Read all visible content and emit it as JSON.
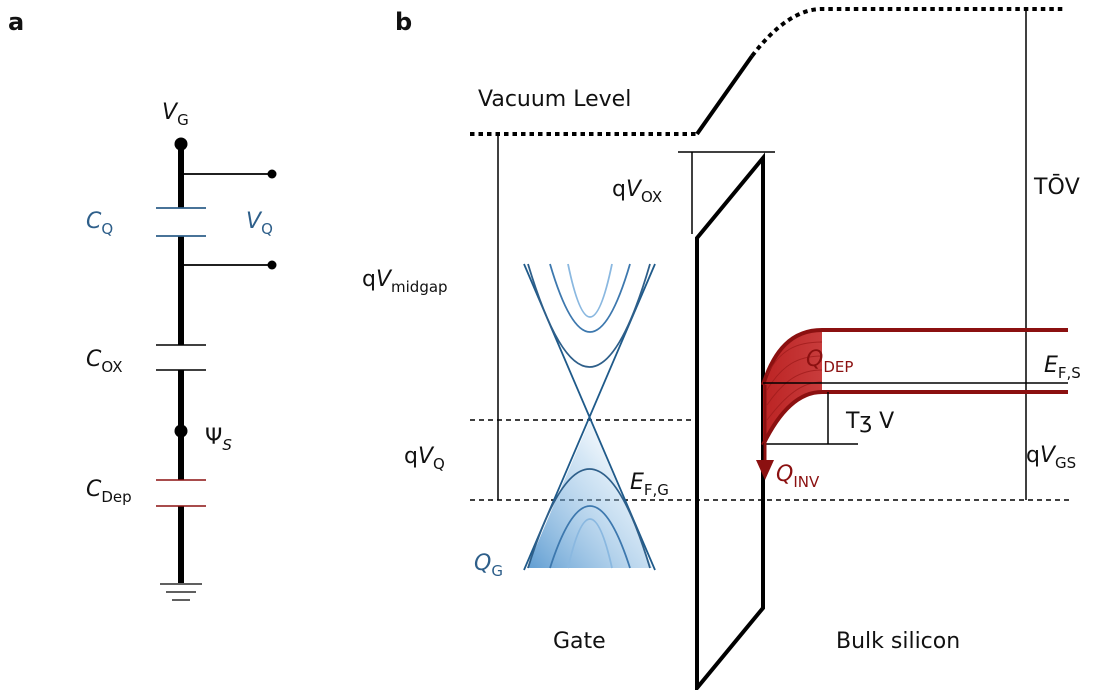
{
  "panel_a": {
    "letter": "a",
    "vg": {
      "main": "V",
      "sub": "G"
    },
    "cq": {
      "main": "C",
      "sub": "Q"
    },
    "vq": {
      "main": "V",
      "sub": "Q"
    },
    "cox": {
      "main": "C",
      "sub": "OX"
    },
    "psi": {
      "main": "Ψ",
      "sub": "S"
    },
    "cdep": {
      "main": "C",
      "sub": "Dep"
    }
  },
  "panel_b": {
    "letter": "b",
    "vacuum_level": "Vacuum Level",
    "qvox": {
      "pre": "q",
      "main": "V",
      "sub": "OX"
    },
    "qvmidgap": {
      "pre": "q",
      "main": "V",
      "sub": "midgap"
    },
    "qvq": {
      "pre": "q",
      "main": "V",
      "sub": "Q"
    },
    "efg": {
      "main": "E",
      "sub": "F,G"
    },
    "qg": {
      "main": "Q",
      "sub": "G"
    },
    "qdep": {
      "main": "Q",
      "sub": "DEP"
    },
    "qinv": {
      "main": "Q",
      "sub": "INV"
    },
    "efs": {
      "main": "E",
      "sub": "F,S"
    },
    "garbled_top": "TŌV",
    "garbled_mid": "Tʒ V",
    "qvgs": {
      "pre": "q",
      "main": "V",
      "sub": "GS"
    },
    "gate": "Gate",
    "bulk": "Bulk silicon"
  },
  "colors": {
    "quantum_blue": "#2e5f8a",
    "dirac_blue": "#1f5a8a",
    "fill_blue": "#4a90c8",
    "charge_red": "#8b1010",
    "fill_red": "#e03030"
  }
}
